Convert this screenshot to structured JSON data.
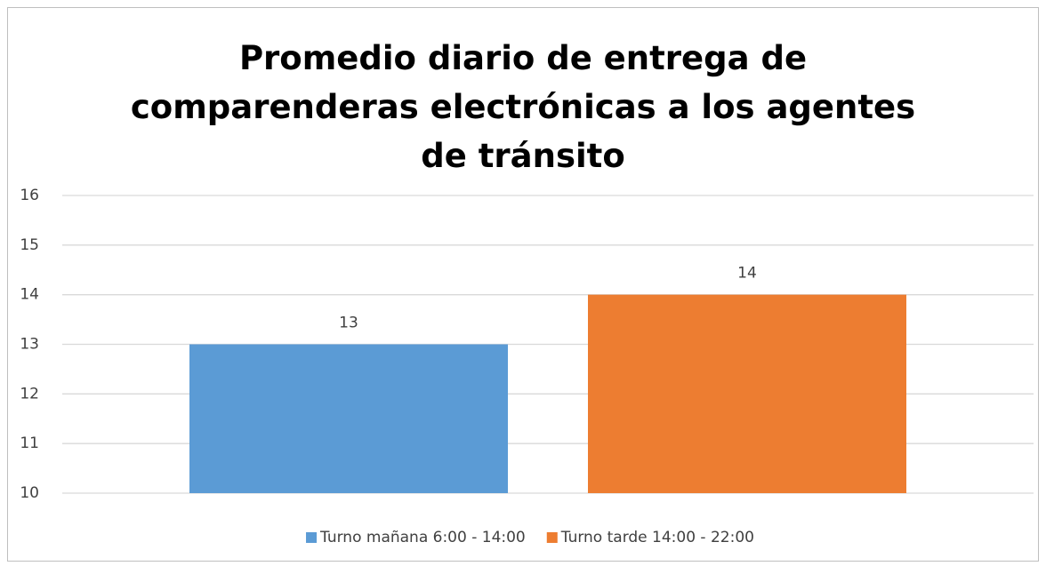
{
  "chart_data": {
    "type": "bar",
    "title": "Promedio diario de entrega de comparenderas electrónicas a los agentes de tránsito",
    "categories": [
      null
    ],
    "series": [
      {
        "name": "Turno mañana 6:00 - 14:00",
        "color": "#5b9bd5",
        "values": [
          13
        ]
      },
      {
        "name": "Turno tarde 14:00 - 22:00",
        "color": "#ed7d31",
        "values": [
          14
        ]
      }
    ],
    "ylim": [
      10,
      16
    ],
    "yticks": [
      10,
      11,
      12,
      13,
      14,
      15,
      16
    ],
    "grid": true,
    "legend": "bottom"
  }
}
